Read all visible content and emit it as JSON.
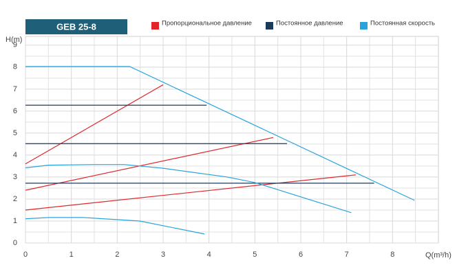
{
  "chart_data": {
    "type": "line",
    "title": "GEB 25-8",
    "ylabel": "H(m)",
    "xlabel": "Q(m³/h)",
    "xlim": [
      0,
      9
    ],
    "ylim": [
      0,
      9.4
    ],
    "xticks": [
      0,
      1,
      2,
      3,
      4,
      5,
      6,
      7,
      8
    ],
    "yticks": [
      0,
      1,
      2,
      3,
      4,
      5,
      6,
      7,
      8,
      9
    ],
    "grid": true,
    "series": [
      {
        "name": "Пропорциональное давление",
        "color": "#e0262b",
        "lines": [
          {
            "x": [
              0,
              3
            ],
            "values": [
              3.6,
              7.2
            ]
          },
          {
            "x": [
              0,
              5.4
            ],
            "values": [
              2.4,
              4.8
            ]
          },
          {
            "x": [
              0,
              7.2
            ],
            "values": [
              1.5,
              3.1
            ]
          }
        ]
      },
      {
        "name": "Постоянное давление",
        "color": "#1d3a5a",
        "lines": [
          {
            "x": [
              0,
              3.95
            ],
            "values": [
              6.27,
              6.27
            ]
          },
          {
            "x": [
              0,
              5.7
            ],
            "values": [
              4.52,
              4.52
            ]
          },
          {
            "x": [
              0,
              7.6
            ],
            "values": [
              2.72,
              2.72
            ]
          }
        ]
      },
      {
        "name": "Постоянная скорость",
        "color": "#2aa3dc",
        "lines": [
          {
            "x": [
              0,
              2.27,
              8.48
            ],
            "values": [
              8.03,
              8.03,
              1.94
            ]
          },
          {
            "x": [
              0,
              0.5,
              1.5,
              2.15,
              3,
              4.4,
              5,
              7.1
            ],
            "values": [
              3.42,
              3.54,
              3.57,
              3.57,
              3.4,
              3.0,
              2.75,
              1.38
            ]
          },
          {
            "x": [
              0,
              0.5,
              1.25,
              2.49,
              3.9
            ],
            "values": [
              1.1,
              1.16,
              1.16,
              1.0,
              0.41
            ]
          }
        ]
      }
    ]
  }
}
